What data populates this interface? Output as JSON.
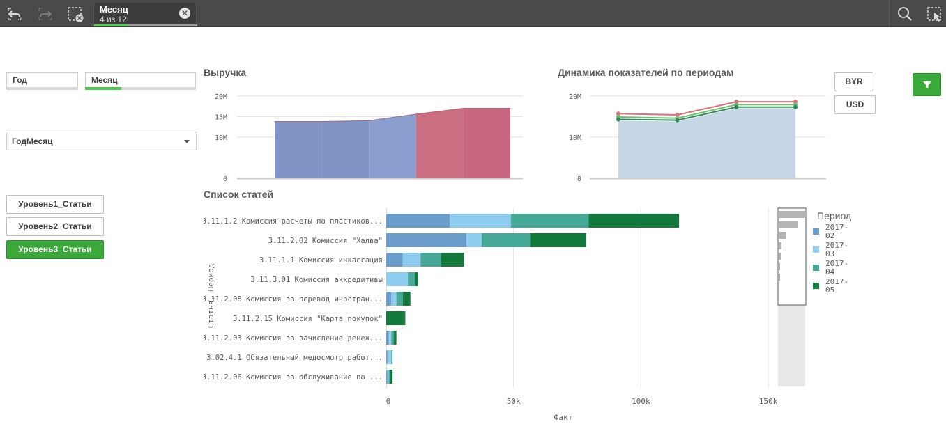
{
  "toolbar": {
    "undo_icon": "undo-icon",
    "redo_icon": "redo-icon",
    "clear_icon": "clear-selections-icon",
    "selection_chip": {
      "title": "Месяц",
      "subtitle": "4 из 12",
      "selected_fraction": 0.33
    },
    "search_icon": "search-icon",
    "fullscreen_icon": "selection-tool-icon"
  },
  "filters": {
    "god": {
      "label": "Год",
      "selected_fraction": 0
    },
    "mesyats": {
      "label": "Месяц",
      "selected_fraction": 0.33
    },
    "dropdown": {
      "label": "ГодМесяц"
    }
  },
  "level_buttons": [
    {
      "label": "Уровень1_Статьи",
      "active": false
    },
    {
      "label": "Уровень2_Статьи",
      "active": false
    },
    {
      "label": "Уровень3_Статьи",
      "active": true
    }
  ],
  "currency_buttons": {
    "byr": "BYR",
    "usd": "USD"
  },
  "filter_icon": "filter-icon",
  "colors": {
    "green_accent": "#3aa83a",
    "p2017_02": "#6a9ccc",
    "p2017_03": "#8ecdf0",
    "p2017_04": "#46a896",
    "p2017_05": "#147a3c",
    "revenue_blue": "#8094c6",
    "revenue_red": "#cc6e82"
  },
  "chart_data": [
    {
      "id": "revenue",
      "type": "area",
      "title": "Выручка",
      "y_ticks": [
        "20M",
        "15M",
        "10M",
        "0"
      ],
      "ylim": [
        0,
        22000000
      ],
      "values": [
        13800000,
        13800000,
        14000000,
        15600000,
        17000000,
        17000000
      ],
      "series_colors": [
        "#8094c6",
        "#8a9fd0",
        "#cc6e82",
        "#c96680"
      ]
    },
    {
      "id": "dynamics",
      "type": "line",
      "title": "Динамика показателей по периодам",
      "y_ticks": [
        "20M",
        "10M",
        "0"
      ],
      "ylim": [
        0,
        22000000
      ],
      "area_values": [
        14000000,
        13800000,
        17000000,
        17000000
      ],
      "lines": [
        {
          "color": "#d9707a",
          "values": [
            15700000,
            15400000,
            18600000,
            18600000
          ]
        },
        {
          "color": "#6fbf6f",
          "values": [
            14900000,
            14600000,
            17900000,
            17900000
          ]
        },
        {
          "color": "#2e8b57",
          "values": [
            14300000,
            14100000,
            17300000,
            17300000
          ]
        }
      ]
    },
    {
      "id": "articles",
      "type": "bar",
      "title": "Список статей",
      "xlabel": "Факт",
      "ylabel": "Статья, Период",
      "x_ticks": [
        "0",
        "50k",
        "100k",
        "150k"
      ],
      "xlim": [
        0,
        150000
      ],
      "legend_title": "Период",
      "legend": [
        "2017-02",
        "2017-03",
        "2017-04",
        "2017-05"
      ],
      "categories": [
        "3.11.1.2 Комиссия расчеты по пластиков...",
        "3.11.2.02 Комиссия \"Халва\"",
        "3.11.1.1 Комиссия инкассация",
        "3.11.3.01 Комиссия аккредитивы",
        "3.11.2.08 Комиссия за перевод иностран...",
        "3.11.2.15 Комиссия \"Карта покупок\"",
        "3.11.2.03 Комиссия за зачисление денеж...",
        "3.02.4.1 Обязательный медосмотр работ...",
        "3.11.2.06 Комиссия за обслуживание по ..."
      ],
      "series": [
        {
          "name": "2017-02",
          "values": [
            25000,
            31500,
            6500,
            0,
            2000,
            0,
            1000,
            500,
            500
          ]
        },
        {
          "name": "2017-03",
          "values": [
            24000,
            6000,
            7000,
            8500,
            2000,
            0,
            1000,
            1500,
            500
          ]
        },
        {
          "name": "2017-04",
          "values": [
            30500,
            19000,
            8000,
            3000,
            2500,
            0,
            1000,
            500,
            500
          ]
        },
        {
          "name": "2017-05",
          "values": [
            35500,
            22000,
            9000,
            1000,
            3000,
            7500,
            1000,
            0,
            1000
          ]
        }
      ]
    }
  ]
}
